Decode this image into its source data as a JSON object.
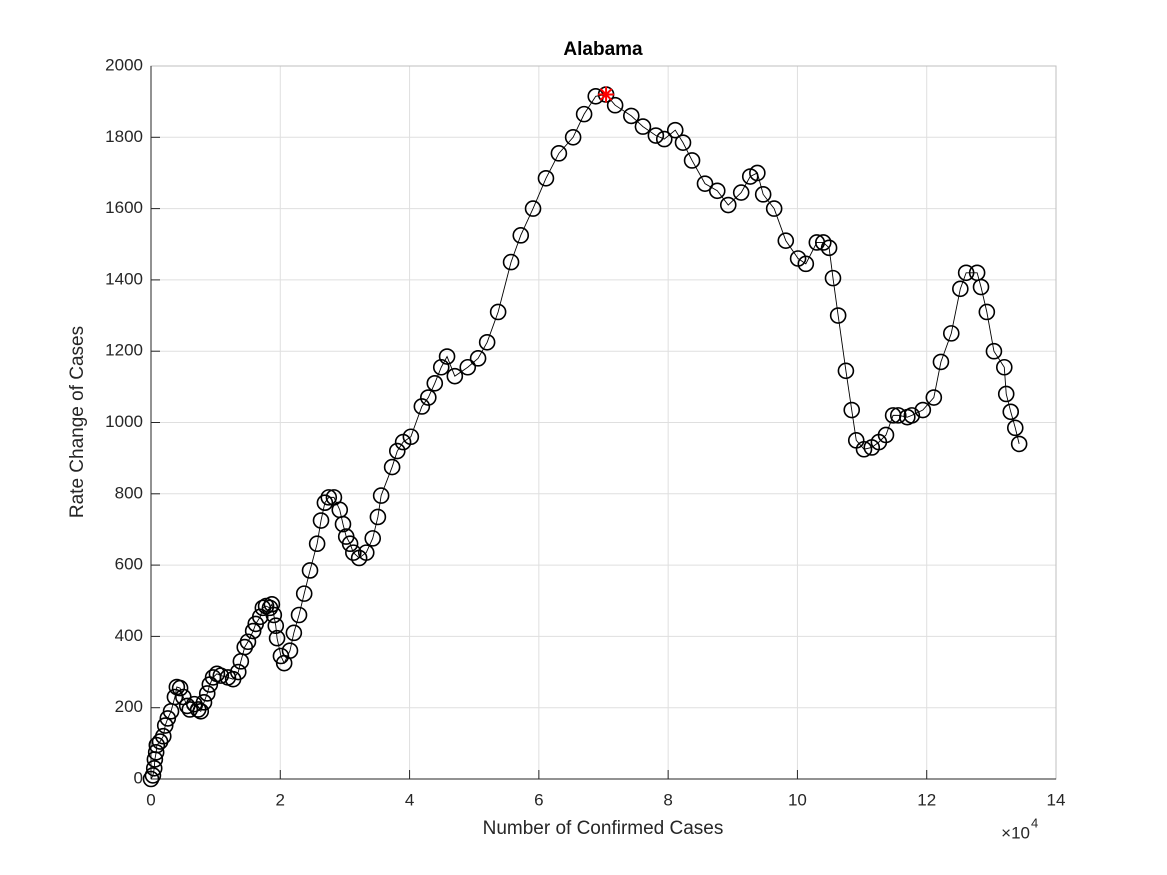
{
  "chart_data": {
    "type": "scatter",
    "title": "Alabama",
    "xlabel": "Number of Confirmed Cases",
    "ylabel": "Rate Change of Cases",
    "x_exponent": {
      "base": "×10",
      "power": "4"
    },
    "xlim": [
      0,
      140000
    ],
    "ylim": [
      0,
      2000
    ],
    "xticks": [
      {
        "value": 0,
        "label": "0"
      },
      {
        "value": 20000,
        "label": "2"
      },
      {
        "value": 40000,
        "label": "4"
      },
      {
        "value": 60000,
        "label": "6"
      },
      {
        "value": 80000,
        "label": "8"
      },
      {
        "value": 100000,
        "label": "10"
      },
      {
        "value": 120000,
        "label": "12"
      },
      {
        "value": 140000,
        "label": "14"
      }
    ],
    "yticks": [
      0,
      200,
      400,
      600,
      800,
      1000,
      1200,
      1400,
      1600,
      1800,
      2000
    ],
    "grid": true,
    "series": [
      {
        "color": "#000000",
        "marker": "circle",
        "line": true,
        "x": [
          0,
          300,
          500,
          600,
          800,
          900,
          1400,
          1900,
          2200,
          2600,
          3100,
          3700,
          4000,
          4500,
          5000,
          5600,
          6000,
          6700,
          7300,
          7700,
          8200,
          8700,
          9100,
          9600,
          10200,
          10800,
          11900,
          12700,
          13500,
          13900,
          14500,
          15000,
          15800,
          16200,
          16900,
          17300,
          17800,
          18400,
          18700,
          19000,
          19300,
          19500,
          20100,
          20600,
          21500,
          22100,
          22900,
          23700,
          24600,
          25700,
          26300,
          26900,
          27500,
          28300,
          29200,
          29700,
          30200,
          30800,
          31300,
          32200,
          33300,
          34300,
          35100,
          35600,
          37300,
          38100,
          39000,
          40200,
          41900,
          42900,
          43900,
          44900,
          45800,
          47000,
          49000,
          50600,
          52000,
          53700,
          55700,
          57200,
          59100,
          61100,
          63100,
          65300,
          67000,
          68800,
          70400,
          71800,
          74300,
          76100,
          78100,
          79400,
          81100,
          82300,
          83700,
          85700,
          87600,
          89300,
          91300,
          92700,
          93800,
          94700,
          96400,
          98200,
          100100,
          101300,
          103000,
          104000,
          104900,
          105500,
          106300,
          107500,
          108400,
          109100,
          110300,
          111500,
          112600,
          113700,
          114800,
          115600,
          117000,
          117700,
          119400,
          121100,
          122200,
          123800,
          125200,
          126100,
          127800,
          128400,
          129300,
          130400,
          132000,
          132300,
          133000,
          133700,
          134300
        ],
        "values": [
          0,
          10,
          30,
          55,
          75,
          95,
          105,
          120,
          150,
          170,
          190,
          230,
          258,
          255,
          230,
          205,
          195,
          210,
          195,
          190,
          215,
          240,
          265,
          285,
          295,
          290,
          285,
          280,
          300,
          330,
          370,
          385,
          415,
          435,
          455,
          480,
          485,
          480,
          490,
          460,
          430,
          395,
          345,
          325,
          360,
          410,
          460,
          520,
          585,
          660,
          725,
          775,
          790,
          790,
          755,
          715,
          680,
          660,
          635,
          620,
          635,
          675,
          735,
          795,
          875,
          920,
          945,
          960,
          1045,
          1070,
          1110,
          1155,
          1185,
          1130,
          1155,
          1180,
          1225,
          1310,
          1450,
          1525,
          1600,
          1685,
          1755,
          1800,
          1865,
          1915,
          1920,
          1890,
          1860,
          1830,
          1805,
          1795,
          1820,
          1785,
          1735,
          1670,
          1650,
          1610,
          1645,
          1690,
          1700,
          1640,
          1600,
          1510,
          1460,
          1445,
          1505,
          1505,
          1490,
          1405,
          1300,
          1145,
          1035,
          950,
          925,
          930,
          945,
          965,
          1020,
          1020,
          1015,
          1020,
          1035,
          1070,
          1170,
          1250,
          1375,
          1420,
          1420,
          1380,
          1310,
          1200,
          1155,
          1080,
          1030,
          985,
          940
        ]
      },
      {
        "color": "#ff0000",
        "marker": "asterisk",
        "line": false,
        "x": [
          70400
        ],
        "values": [
          1920
        ]
      }
    ]
  }
}
